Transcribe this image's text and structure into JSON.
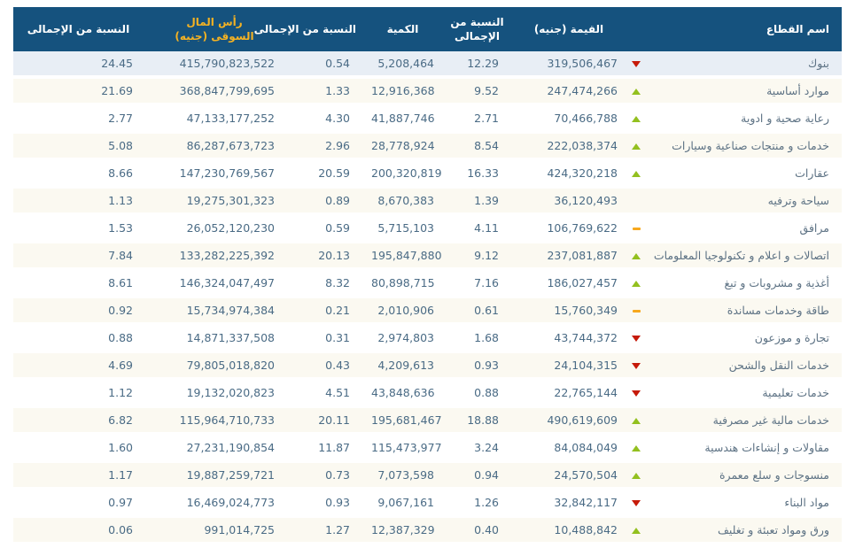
{
  "colors": {
    "header_bg": "#15527e",
    "header_text": "#ffffff",
    "market_cap_header_text": "#f4b223",
    "highlight_row_bg": "#e8eef5",
    "stripe_row_bg": "#fbf9f1",
    "trend_up": "#93c01f",
    "trend_down": "#c61a09",
    "trend_flat": "#f7a81d",
    "cell_text": "#4a6b85"
  },
  "table": {
    "header": {
      "sector": "اسم القطاع",
      "value": "القيمة (جنيه)",
      "value_pct": "النسبة من الإجمالى",
      "quantity": "الكمية",
      "quantity_pct": "النسبة من الإجمالى",
      "market_cap": "رأس المال السوقى (جنيه)",
      "market_cap_pct": "النسبة من الإجمالى"
    },
    "rows": [
      {
        "sector": "بنوك",
        "trend": "down",
        "value": "319,506,467",
        "value_pct": "12.29",
        "quantity": "5,208,464",
        "quantity_pct": "0.54",
        "market_cap": "415,790,823,522",
        "market_cap_pct": "24.45",
        "highlighted": true
      },
      {
        "sector": "موارد أساسية",
        "trend": "up",
        "value": "247,474,266",
        "value_pct": "9.52",
        "quantity": "12,916,368",
        "quantity_pct": "1.33",
        "market_cap": "368,847,799,695",
        "market_cap_pct": "21.69",
        "highlighted": false
      },
      {
        "sector": "رعاية صحية و ادوية",
        "trend": "up",
        "value": "70,466,788",
        "value_pct": "2.71",
        "quantity": "41,887,746",
        "quantity_pct": "4.30",
        "market_cap": "47,133,177,252",
        "market_cap_pct": "2.77",
        "highlighted": false
      },
      {
        "sector": "خدمات و منتجات صناعية وسيارات",
        "trend": "up",
        "value": "222,038,374",
        "value_pct": "8.54",
        "quantity": "28,778,924",
        "quantity_pct": "2.96",
        "market_cap": "86,287,673,723",
        "market_cap_pct": "5.08",
        "highlighted": false
      },
      {
        "sector": "عقارات",
        "trend": "up",
        "value": "424,320,218",
        "value_pct": "16.33",
        "quantity": "200,320,819",
        "quantity_pct": "20.59",
        "market_cap": "147,230,769,567",
        "market_cap_pct": "8.66",
        "highlighted": false
      },
      {
        "sector": "سياحة وترفيه",
        "trend": "none",
        "value": "36,120,493",
        "value_pct": "1.39",
        "quantity": "8,670,383",
        "quantity_pct": "0.89",
        "market_cap": "19,275,301,323",
        "market_cap_pct": "1.13",
        "highlighted": false
      },
      {
        "sector": "مرافق",
        "trend": "flat",
        "value": "106,769,622",
        "value_pct": "4.11",
        "quantity": "5,715,103",
        "quantity_pct": "0.59",
        "market_cap": "26,052,120,230",
        "market_cap_pct": "1.53",
        "highlighted": false
      },
      {
        "sector": "اتصالات و اعلام و تكنولوجيا المعلومات",
        "trend": "up",
        "value": "237,081,887",
        "value_pct": "9.12",
        "quantity": "195,847,880",
        "quantity_pct": "20.13",
        "market_cap": "133,282,225,392",
        "market_cap_pct": "7.84",
        "highlighted": false
      },
      {
        "sector": "أغذية و مشروبات و تبغ",
        "trend": "up",
        "value": "186,027,457",
        "value_pct": "7.16",
        "quantity": "80,898,715",
        "quantity_pct": "8.32",
        "market_cap": "146,324,047,497",
        "market_cap_pct": "8.61",
        "highlighted": false
      },
      {
        "sector": "طاقة وخدمات مساندة",
        "trend": "flat",
        "value": "15,760,349",
        "value_pct": "0.61",
        "quantity": "2,010,906",
        "quantity_pct": "0.21",
        "market_cap": "15,734,974,384",
        "market_cap_pct": "0.92",
        "highlighted": false
      },
      {
        "sector": "تجارة و موزعون",
        "trend": "down",
        "value": "43,744,372",
        "value_pct": "1.68",
        "quantity": "2,974,803",
        "quantity_pct": "0.31",
        "market_cap": "14,871,337,508",
        "market_cap_pct": "0.88",
        "highlighted": false
      },
      {
        "sector": "خدمات النقل والشحن",
        "trend": "down",
        "value": "24,104,315",
        "value_pct": "0.93",
        "quantity": "4,209,613",
        "quantity_pct": "0.43",
        "market_cap": "79,805,018,820",
        "market_cap_pct": "4.69",
        "highlighted": false
      },
      {
        "sector": "خدمات تعليمية",
        "trend": "down",
        "value": "22,765,144",
        "value_pct": "0.88",
        "quantity": "43,848,636",
        "quantity_pct": "4.51",
        "market_cap": "19,132,020,823",
        "market_cap_pct": "1.12",
        "highlighted": false
      },
      {
        "sector": "خدمات مالية غير مصرفية",
        "trend": "up",
        "value": "490,619,609",
        "value_pct": "18.88",
        "quantity": "195,681,467",
        "quantity_pct": "20.11",
        "market_cap": "115,964,710,733",
        "market_cap_pct": "6.82",
        "highlighted": false
      },
      {
        "sector": "مقاولات و إنشاءات هندسية",
        "trend": "up",
        "value": "84,084,049",
        "value_pct": "3.24",
        "quantity": "115,473,977",
        "quantity_pct": "11.87",
        "market_cap": "27,231,190,854",
        "market_cap_pct": "1.60",
        "highlighted": false
      },
      {
        "sector": "منسوجات و سلع معمرة",
        "trend": "up",
        "value": "24,570,504",
        "value_pct": "0.94",
        "quantity": "7,073,598",
        "quantity_pct": "0.73",
        "market_cap": "19,887,259,721",
        "market_cap_pct": "1.17",
        "highlighted": false
      },
      {
        "sector": "مواد البناء",
        "trend": "down",
        "value": "32,842,117",
        "value_pct": "1.26",
        "quantity": "9,067,161",
        "quantity_pct": "0.93",
        "market_cap": "16,469,024,773",
        "market_cap_pct": "0.97",
        "highlighted": false
      },
      {
        "sector": "ورق ومواد تعبئة و تغليف",
        "trend": "up",
        "value": "10,488,842",
        "value_pct": "0.40",
        "quantity": "12,387,329",
        "quantity_pct": "1.27",
        "market_cap": "991,014,725",
        "market_cap_pct": "0.06",
        "highlighted": false
      }
    ]
  }
}
